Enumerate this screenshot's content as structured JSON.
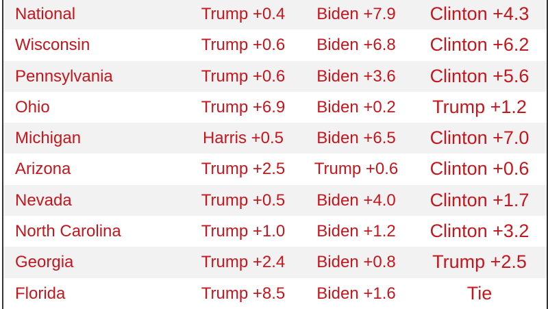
{
  "colors": {
    "text": "#c4161c",
    "stripe": "#f2f2f2"
  },
  "rows": [
    {
      "region": "National",
      "col1": "Trump +0.4",
      "col2": "Biden +7.9",
      "col3": "Clinton +4.3"
    },
    {
      "region": "Wisconsin",
      "col1": "Trump +0.6",
      "col2": "Biden +6.8",
      "col3": "Clinton +6.2"
    },
    {
      "region": "Pennsylvania",
      "col1": "Trump +0.6",
      "col2": "Biden +3.6",
      "col3": "Clinton +5.6"
    },
    {
      "region": "Ohio",
      "col1": "Trump +6.9",
      "col2": "Biden +0.2",
      "col3": "Trump +1.2"
    },
    {
      "region": "Michigan",
      "col1": "Harris +0.5",
      "col2": "Biden +6.5",
      "col3": "Clinton +7.0"
    },
    {
      "region": "Arizona",
      "col1": "Trump +2.5",
      "col2": "Trump +0.6",
      "col3": "Clinton +0.6"
    },
    {
      "region": "Nevada",
      "col1": "Trump +0.5",
      "col2": "Biden +4.0",
      "col3": "Clinton +1.7"
    },
    {
      "region": "North Carolina",
      "col1": "Trump +1.0",
      "col2": "Biden +1.2",
      "col3": "Clinton +3.2"
    },
    {
      "region": "Georgia",
      "col1": "Trump +2.4",
      "col2": "Biden +0.8",
      "col3": "Trump +2.5"
    },
    {
      "region": "Florida",
      "col1": "Trump +8.5",
      "col2": "Biden +1.6",
      "col3": "Tie"
    }
  ]
}
